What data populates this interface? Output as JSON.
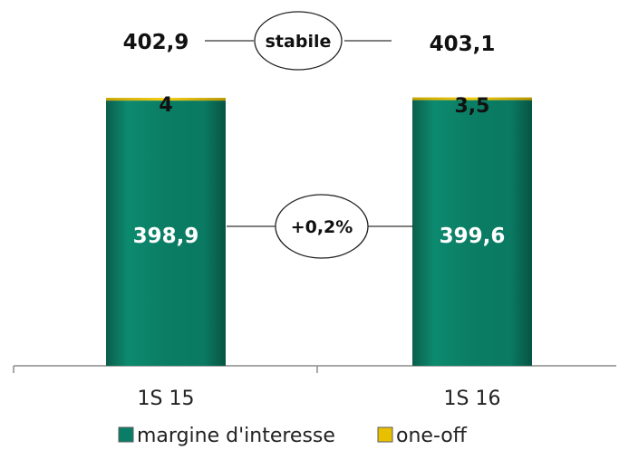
{
  "chart_data": {
    "type": "bar",
    "stacked": true,
    "categories": [
      "1S 15",
      "1S 16"
    ],
    "series": [
      {
        "name": "margine d'interesse",
        "values": [
          398.9,
          399.6
        ],
        "labels": [
          "398,9",
          "399,6"
        ],
        "color": "#0a7d66"
      },
      {
        "name": "one-off",
        "values": [
          4,
          3.5
        ],
        "labels": [
          "4",
          "3,5"
        ],
        "color": "#e8c000"
      }
    ],
    "totals": [
      "402,9",
      "403,1"
    ],
    "annotations": [
      {
        "text": "stabile",
        "between": "totals"
      },
      {
        "text": "+0,2%",
        "between": "margine d'interesse"
      }
    ],
    "legend": "bottom-center",
    "grid": false,
    "title": "",
    "xlabel": "",
    "ylabel": ""
  }
}
